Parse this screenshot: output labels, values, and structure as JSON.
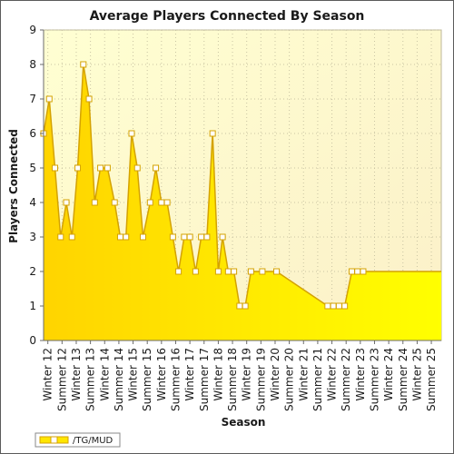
{
  "chart_data": {
    "type": "area",
    "title": "Average Players Connected By Season",
    "xlabel": "Season",
    "ylabel": "Players Connected",
    "ylim": [
      0,
      9
    ],
    "yticks": [
      0,
      1,
      2,
      3,
      4,
      5,
      6,
      7,
      8,
      9
    ],
    "grid": true,
    "legend_position": "bottom-left",
    "categories": [
      "Winter 12",
      "Summer 12",
      "Winter 13",
      "Summer 13",
      "Winter 14",
      "Summer 14",
      "Winter 15",
      "Summer 15",
      "Winter 16",
      "Summer 16",
      "Winter 17",
      "Summer 17",
      "Winter 18",
      "Summer 18",
      "Winter 19",
      "Summer 19",
      "Winter 20",
      "Summer 20",
      "Winter 21",
      "Summer 21",
      "Winter 22",
      "Summer 22",
      "Winter 23",
      "Summer 23",
      "Winter 24",
      "Summer 24",
      "Winter 25",
      "Summer 25"
    ],
    "series": [
      {
        "name": "/TG/MUD",
        "color": "#ffea00",
        "line_color": "#d4a200",
        "points": [
          {
            "x": 11.95,
            "y": 6
          },
          {
            "x": 12.15,
            "y": 7
          },
          {
            "x": 12.35,
            "y": 5
          },
          {
            "x": 12.55,
            "y": 3
          },
          {
            "x": 12.75,
            "y": 4
          },
          {
            "x": 12.95,
            "y": 3
          },
          {
            "x": 13.15,
            "y": 5
          },
          {
            "x": 13.35,
            "y": 8
          },
          {
            "x": 13.55,
            "y": 7
          },
          {
            "x": 13.75,
            "y": 4
          },
          {
            "x": 13.95,
            "y": 5
          },
          {
            "x": 14.2,
            "y": 5
          },
          {
            "x": 14.45,
            "y": 4
          },
          {
            "x": 14.65,
            "y": 3
          },
          {
            "x": 14.85,
            "y": 3
          },
          {
            "x": 15.05,
            "y": 6
          },
          {
            "x": 15.25,
            "y": 5
          },
          {
            "x": 15.45,
            "y": 3
          },
          {
            "x": 15.7,
            "y": 4
          },
          {
            "x": 15.9,
            "y": 5
          },
          {
            "x": 16.1,
            "y": 4
          },
          {
            "x": 16.3,
            "y": 4
          },
          {
            "x": 16.5,
            "y": 3
          },
          {
            "x": 16.7,
            "y": 2
          },
          {
            "x": 16.9,
            "y": 3
          },
          {
            "x": 17.1,
            "y": 3
          },
          {
            "x": 17.3,
            "y": 2
          },
          {
            "x": 17.5,
            "y": 3
          },
          {
            "x": 17.7,
            "y": 3
          },
          {
            "x": 17.9,
            "y": 6
          },
          {
            "x": 18.1,
            "y": 2
          },
          {
            "x": 18.25,
            "y": 3
          },
          {
            "x": 18.45,
            "y": 2
          },
          {
            "x": 18.65,
            "y": 2
          },
          {
            "x": 18.85,
            "y": 1
          },
          {
            "x": 19.05,
            "y": 1
          },
          {
            "x": 19.25,
            "y": 2
          },
          {
            "x": 19.65,
            "y": 2
          },
          {
            "x": 20.15,
            "y": 2
          },
          {
            "x": 20.15,
            "y": 2
          },
          {
            "x": 21.95,
            "y": 1
          },
          {
            "x": 22.15,
            "y": 1
          },
          {
            "x": 22.35,
            "y": 1
          },
          {
            "x": 22.55,
            "y": 1
          },
          {
            "x": 22.8,
            "y": 2
          },
          {
            "x": 23.0,
            "y": 2
          },
          {
            "x": 23.2,
            "y": 2
          }
        ]
      }
    ]
  }
}
